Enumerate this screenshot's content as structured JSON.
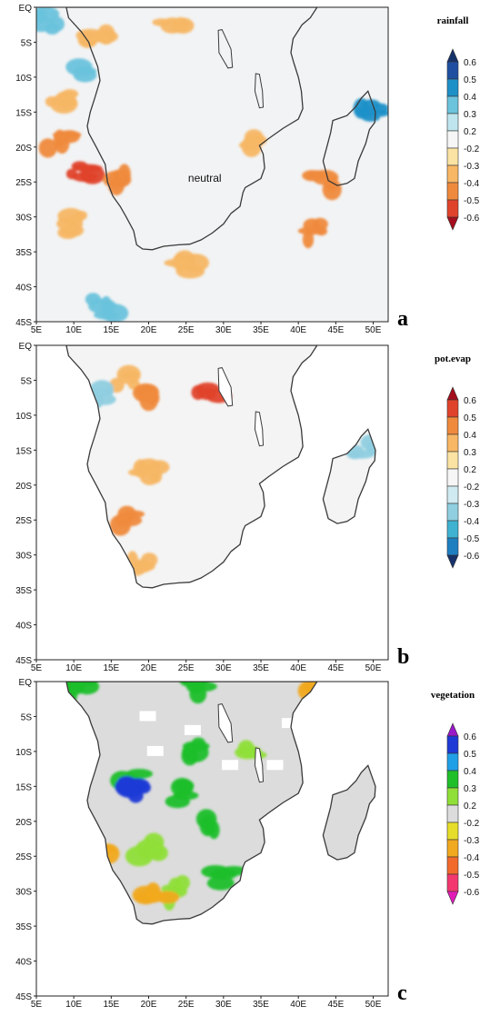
{
  "chart_data": [
    {
      "type": "heatmap",
      "panel_label": "a",
      "variable": "rainfall",
      "annotation": "neutral",
      "x_ticks": [
        "5E",
        "10E",
        "15E",
        "20E",
        "25E",
        "30E",
        "35E",
        "40E",
        "45E",
        "50E"
      ],
      "y_ticks": [
        "EQ",
        "5S",
        "10S",
        "15S",
        "20S",
        "25S",
        "30S",
        "35S",
        "40S",
        "45S"
      ],
      "xlim": [
        5,
        52
      ],
      "ylim": [
        0,
        -45
      ],
      "colorbar": {
        "title": "rainfall",
        "labels": [
          "0.6",
          "0.5",
          "0.4",
          "0.3",
          "0.2",
          "-0.2",
          "-0.3",
          "-0.4",
          "-0.5",
          "-0.6"
        ],
        "colors": [
          "#16326a",
          "#1f4fa0",
          "#1e90c8",
          "#6cc3dc",
          "#bfe6ee",
          "#f6f6f6",
          "#fbe3a3",
          "#f7b765",
          "#ef8a3c",
          "#e0432b",
          "#a40e1d"
        ]
      },
      "anomaly_regions": [
        {
          "sign": "dry",
          "level": "-0.3",
          "center": [
            13,
            -5
          ]
        },
        {
          "sign": "dry",
          "level": "-0.3",
          "center": [
            23,
            -3
          ]
        },
        {
          "sign": "dry",
          "level": "-0.3",
          "center": [
            8,
            -13
          ]
        },
        {
          "sign": "dry",
          "level": "-0.4",
          "center": [
            8,
            -19
          ]
        },
        {
          "sign": "dry",
          "level": "-0.5",
          "center": [
            11,
            -24
          ]
        },
        {
          "sign": "dry",
          "level": "-0.4",
          "center": [
            16,
            -25
          ]
        },
        {
          "sign": "dry",
          "level": "-0.3",
          "center": [
            10,
            -31
          ]
        },
        {
          "sign": "dry",
          "level": "-0.3",
          "center": [
            33,
            -19
          ]
        },
        {
          "sign": "dry",
          "level": "-0.4",
          "center": [
            43,
            -25
          ]
        },
        {
          "sign": "dry",
          "level": "-0.4",
          "center": [
            42,
            -32
          ]
        },
        {
          "sign": "dry",
          "level": "-0.3",
          "center": [
            25,
            -37
          ]
        },
        {
          "sign": "wet",
          "level": "0.3",
          "center": [
            7,
            -2
          ]
        },
        {
          "sign": "wet",
          "level": "0.3",
          "center": [
            12,
            -9
          ]
        },
        {
          "sign": "wet",
          "level": "0.4",
          "center": [
            50,
            -15
          ]
        },
        {
          "sign": "wet",
          "level": "0.3",
          "center": [
            14,
            -43
          ]
        }
      ]
    },
    {
      "type": "heatmap",
      "panel_label": "b",
      "variable": "pot.evap",
      "x_ticks": [
        "5E",
        "10E",
        "15E",
        "20E",
        "25E",
        "30E",
        "35E",
        "40E",
        "45E",
        "50E"
      ],
      "y_ticks": [
        "EQ",
        "5S",
        "10S",
        "15S",
        "20S",
        "25S",
        "30S",
        "35S",
        "40S",
        "45S"
      ],
      "xlim": [
        5,
        52
      ],
      "ylim": [
        0,
        -45
      ],
      "colorbar": {
        "title": "pot.evap",
        "labels": [
          "0.6",
          "0.5",
          "0.4",
          "0.3",
          "0.2",
          "-0.2",
          "-0.3",
          "-0.4",
          "-0.5",
          "-0.6"
        ],
        "colors": [
          "#a40e1d",
          "#e0432b",
          "#ef8a3c",
          "#f7b765",
          "#fbe3a3",
          "#f6f6f6",
          "#cfeaf0",
          "#8fcfe0",
          "#3fb2d2",
          "#1e7fc0",
          "#16326a"
        ]
      },
      "anomaly_regions": [
        {
          "sign": "high",
          "level": "0.3",
          "center": [
            17,
            -5
          ]
        },
        {
          "sign": "high",
          "level": "0.4",
          "center": [
            20,
            -8
          ]
        },
        {
          "sign": "high",
          "level": "0.5",
          "center": [
            28,
            -7
          ]
        },
        {
          "sign": "high",
          "level": "0.3",
          "center": [
            20,
            -18
          ]
        },
        {
          "sign": "high",
          "level": "0.4",
          "center": [
            17,
            -25
          ]
        },
        {
          "sign": "high",
          "level": "0.3",
          "center": [
            19,
            -31
          ]
        },
        {
          "sign": "low",
          "level": "-0.3",
          "center": [
            13,
            -7
          ]
        },
        {
          "sign": "low",
          "level": "-0.3",
          "center": [
            49,
            -15
          ]
        }
      ]
    },
    {
      "type": "heatmap",
      "panel_label": "c",
      "variable": "vegetation",
      "x_ticks": [
        "5E",
        "10E",
        "15E",
        "20E",
        "25E",
        "30E",
        "35E",
        "40E",
        "45E",
        "50E"
      ],
      "y_ticks": [
        "EQ",
        "5S",
        "10S",
        "15S",
        "20S",
        "25S",
        "30S",
        "35S",
        "40S",
        "45S"
      ],
      "xlim": [
        5,
        52
      ],
      "ylim": [
        0,
        -45
      ],
      "colorbar": {
        "title": "vegetation",
        "labels": [
          "0.6",
          "0.5",
          "0.4",
          "0.3",
          "0.2",
          "-0.2",
          "-0.3",
          "-0.4",
          "-0.5",
          "-0.6"
        ],
        "colors": [
          "#9a19c8",
          "#1e3ad6",
          "#1f9fe6",
          "#1fbf2a",
          "#8fdf38",
          "#dcdcdc",
          "#e6dd2a",
          "#f1a91f",
          "#f26a2c",
          "#f2386e",
          "#e21bb8"
        ]
      },
      "anomaly_regions": [
        {
          "sign": "greener",
          "level": "0.3",
          "center": [
            11,
            -1
          ]
        },
        {
          "sign": "greener",
          "level": "0.3",
          "center": [
            18,
            -14
          ]
        },
        {
          "sign": "greener",
          "level": "0.5",
          "center": [
            18,
            -15.5
          ]
        },
        {
          "sign": "greener",
          "level": "0.3",
          "center": [
            24,
            -16
          ]
        },
        {
          "sign": "greener",
          "level": "0.3",
          "center": [
            27,
            -10
          ]
        },
        {
          "sign": "greener",
          "level": "0.2",
          "center": [
            33,
            -10
          ]
        },
        {
          "sign": "greener",
          "level": "0.3",
          "center": [
            29,
            -20
          ]
        },
        {
          "sign": "greener",
          "level": "0.3",
          "center": [
            30,
            -28
          ]
        },
        {
          "sign": "greener",
          "level": "0.2",
          "center": [
            23,
            -30
          ]
        },
        {
          "sign": "greener",
          "level": "0.2",
          "center": [
            20,
            -24
          ]
        },
        {
          "sign": "greener",
          "level": "0.3",
          "center": [
            26,
            -1
          ]
        },
        {
          "sign": "browner",
          "level": "-0.3",
          "center": [
            14,
            -25
          ]
        },
        {
          "sign": "browner",
          "level": "-0.3",
          "center": [
            21,
            -31
          ]
        },
        {
          "sign": "browner",
          "level": "-0.3",
          "center": [
            41,
            -1
          ]
        }
      ]
    }
  ]
}
